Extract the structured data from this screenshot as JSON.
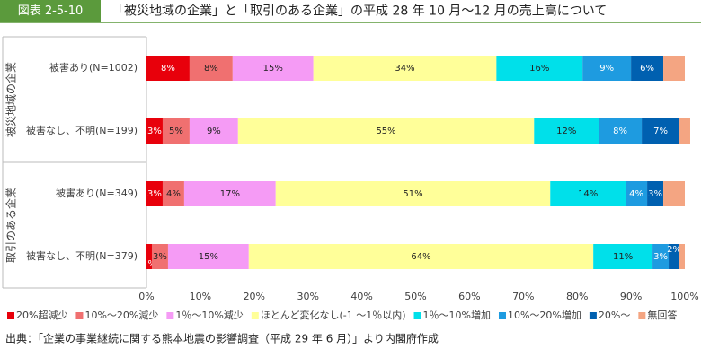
{
  "badge": "図表 2-5-10",
  "title": "「被災地域の企業」と「取引のある企業」の平成 28 年 10 月～12 月の売上高について",
  "source": "出典：「企業の事業継続に関する熊本地震の影響調査（平成 29 年 6 月）」より内閣府作成",
  "chart_data": {
    "type": "bar",
    "orientation": "horizontal",
    "stacked": true,
    "groups": [
      {
        "name": "被災地域の企業",
        "categories": [
          "被害あり(N=1002)",
          "被害なし、不明(N=199)"
        ]
      },
      {
        "name": "取引のある企業",
        "categories": [
          "被害あり(N=349)",
          "被害なし、不明(N=379)"
        ]
      }
    ],
    "series": [
      {
        "name": "20%超減少",
        "color": "#e8000b",
        "values": [
          8,
          3,
          3,
          1
        ],
        "value_labels": [
          "8%",
          "3%",
          "3%",
          "1%"
        ]
      },
      {
        "name": "10%～20%減少",
        "color": "#f07070",
        "values": [
          8,
          5,
          4,
          3
        ],
        "value_labels": [
          "8%",
          "5%",
          "4%",
          "3%"
        ]
      },
      {
        "name": "1％～10%減少",
        "color": "#f59bf5",
        "values": [
          15,
          9,
          17,
          15
        ],
        "value_labels": [
          "15%",
          "9%",
          "17%",
          "15%"
        ]
      },
      {
        "name": "ほとんど変化なし(-1 ～1％以内)",
        "color": "#ffff99",
        "values": [
          34,
          55,
          51,
          64
        ],
        "value_labels": [
          "34%",
          "55%",
          "51%",
          "64%"
        ]
      },
      {
        "name": "1％～10%増加",
        "color": "#00e0ea",
        "values": [
          16,
          12,
          14,
          11
        ],
        "value_labels": [
          "16%",
          "12%",
          "14%",
          "11%"
        ]
      },
      {
        "name": "10%～20%増加",
        "color": "#1e9be0",
        "values": [
          9,
          8,
          4,
          3
        ],
        "value_labels": [
          "9%",
          "8%",
          "4%",
          "3%"
        ]
      },
      {
        "name": "20%～",
        "color": "#0060b0",
        "values": [
          6,
          7,
          3,
          2
        ],
        "value_labels": [
          "6%",
          "7%",
          "3%",
          "2%"
        ]
      },
      {
        "name": "無回答",
        "color": "#f4a582",
        "values": [
          4,
          2,
          4,
          1
        ],
        "value_labels": [
          null,
          null,
          null,
          null
        ]
      }
    ],
    "xlim": [
      0,
      100
    ],
    "xticks": [
      {
        "value": 0,
        "label": "0%"
      },
      {
        "value": 10,
        "label": "10%"
      },
      {
        "value": 20,
        "label": "20%"
      },
      {
        "value": 30,
        "label": "30%"
      },
      {
        "value": 40,
        "label": "40%"
      },
      {
        "value": 50,
        "label": "50%"
      },
      {
        "value": 60,
        "label": "60%"
      },
      {
        "value": 70,
        "label": "70%"
      },
      {
        "value": 80,
        "label": "80%"
      },
      {
        "value": 90,
        "label": "90%"
      },
      {
        "value": 100,
        "label": "100%"
      }
    ],
    "grid": false,
    "legend": "bottom"
  }
}
